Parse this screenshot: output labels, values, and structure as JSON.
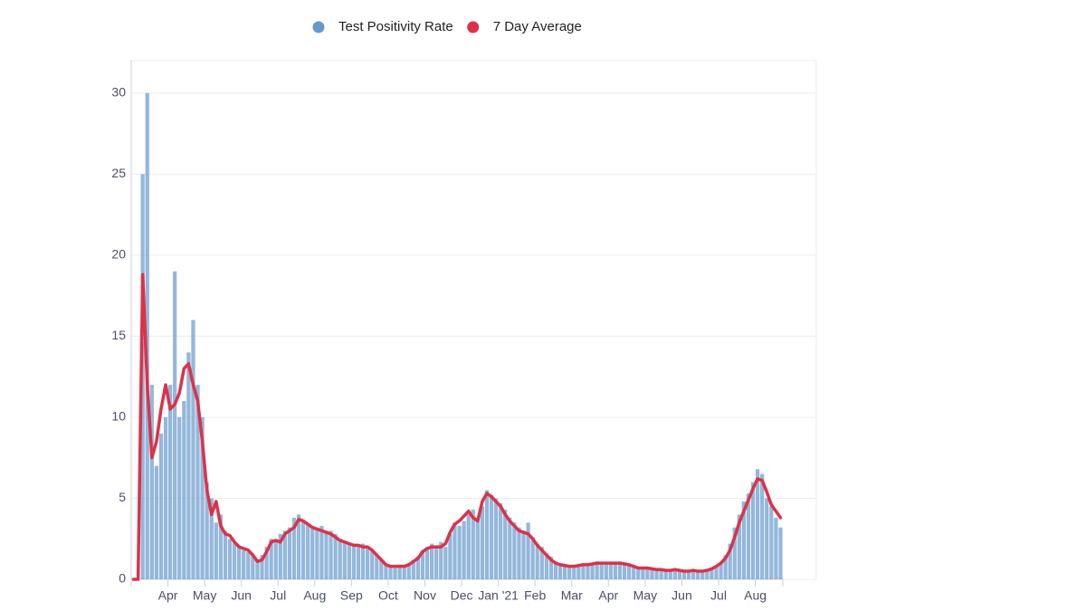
{
  "chart_data": {
    "type": "bar",
    "categories": [
      null,
      null,
      null,
      null,
      null,
      null,
      null,
      null,
      "Apr",
      null,
      null,
      null,
      null,
      null,
      null,
      null,
      "May",
      null,
      null,
      null,
      null,
      null,
      null,
      null,
      "Jun",
      null,
      null,
      null,
      null,
      null,
      null,
      null,
      "Jul",
      null,
      null,
      null,
      null,
      null,
      null,
      null,
      "Aug",
      null,
      null,
      null,
      null,
      null,
      null,
      null,
      "Sep",
      null,
      null,
      null,
      null,
      null,
      null,
      null,
      "Oct",
      null,
      null,
      null,
      null,
      null,
      null,
      null,
      "Nov",
      null,
      null,
      null,
      null,
      null,
      null,
      null,
      "Dec",
      null,
      null,
      null,
      null,
      null,
      null,
      null,
      "Jan '21",
      null,
      null,
      null,
      null,
      null,
      null,
      null,
      "Feb",
      null,
      null,
      null,
      null,
      null,
      null,
      null,
      "Mar",
      null,
      null,
      null,
      null,
      null,
      null,
      null,
      "Apr",
      null,
      null,
      null,
      null,
      null,
      null,
      null,
      "May",
      null,
      null,
      null,
      null,
      null,
      null,
      null,
      "Jun",
      null,
      null,
      null,
      null,
      null,
      null,
      null,
      "Jul",
      null,
      null,
      null,
      null,
      null,
      null,
      null,
      "Aug",
      null,
      null,
      null,
      null,
      null
    ],
    "series": [
      {
        "name": "Test Positivity Rate",
        "type": "bar",
        "color": "#6699cc",
        "values": [
          0,
          0,
          25,
          30,
          12,
          7,
          9,
          10,
          12,
          19,
          10,
          11,
          14,
          16,
          12,
          10,
          6,
          5,
          3.5,
          4,
          3,
          2.5,
          2.3,
          2,
          1.8,
          1.7,
          1.5,
          1.2,
          1.5,
          2,
          2.5,
          2.3,
          2.8,
          3,
          3.2,
          3.8,
          4,
          3.6,
          3.4,
          3.3,
          3.2,
          3.3,
          3,
          3,
          2.8,
          2.5,
          2.3,
          2.2,
          2.2,
          2.1,
          2.2,
          2,
          1.8,
          1.5,
          1.2,
          0.9,
          0.8,
          0.8,
          0.9,
          0.8,
          1,
          1.2,
          1.4,
          1.8,
          2,
          2.2,
          2.1,
          2.3,
          2,
          2.8,
          3.5,
          3.3,
          3.6,
          4,
          4.3,
          3.8,
          4.5,
          5.5,
          5.2,
          5,
          4.7,
          4.3,
          3.8,
          3.5,
          3.2,
          3,
          3.5,
          2.6,
          2.2,
          2,
          1.6,
          1.4,
          1.1,
          1,
          0.9,
          0.8,
          0.9,
          0.9,
          1,
          0.9,
          1,
          1.1,
          1,
          1,
          1,
          1,
          1.1,
          1,
          0.9,
          0.8,
          0.7,
          0.7,
          0.7,
          0.6,
          0.6,
          0.6,
          0.5,
          0.6,
          0.6,
          0.5,
          0.5,
          0.5,
          0.6,
          0.5,
          0.5,
          0.6,
          0.7,
          0.8,
          1,
          1.5,
          2.2,
          3.2,
          4,
          4.8,
          5.3,
          6,
          6.8,
          6.5,
          5,
          4.5,
          3.8,
          3.2
        ]
      },
      {
        "name": "7 Day Average",
        "type": "line",
        "color": "#dc3248",
        "values": [
          0,
          0,
          18.8,
          12,
          7.5,
          8.5,
          10.5,
          12,
          10.5,
          10.8,
          11.5,
          13,
          13.3,
          12,
          11,
          8.5,
          5.5,
          4,
          4.8,
          3.3,
          2.8,
          2.7,
          2.3,
          2,
          1.9,
          1.8,
          1.5,
          1.1,
          1.2,
          1.7,
          2.3,
          2.4,
          2.3,
          2.8,
          3,
          3.2,
          3.7,
          3.6,
          3.4,
          3.2,
          3.1,
          3,
          2.9,
          2.8,
          2.6,
          2.4,
          2.3,
          2.2,
          2.1,
          2.1,
          2,
          2,
          1.8,
          1.5,
          1.2,
          0.9,
          0.8,
          0.8,
          0.8,
          0.8,
          0.9,
          1.1,
          1.3,
          1.7,
          1.9,
          2,
          2,
          2,
          2.2,
          2.9,
          3.4,
          3.6,
          3.9,
          4.2,
          3.8,
          3.6,
          4.8,
          5.3,
          5.1,
          4.8,
          4.5,
          4,
          3.6,
          3.3,
          3,
          2.9,
          2.8,
          2.5,
          2.1,
          1.8,
          1.5,
          1.2,
          1,
          0.9,
          0.85,
          0.8,
          0.8,
          0.85,
          0.9,
          0.9,
          0.95,
          1,
          1,
          1,
          1,
          1,
          1,
          0.95,
          0.9,
          0.8,
          0.7,
          0.7,
          0.7,
          0.65,
          0.6,
          0.6,
          0.55,
          0.55,
          0.6,
          0.55,
          0.5,
          0.5,
          0.55,
          0.5,
          0.5,
          0.55,
          0.65,
          0.8,
          1,
          1.3,
          1.8,
          2.6,
          3.5,
          4.2,
          4.9,
          5.6,
          6.2,
          6.1,
          5.4,
          4.6,
          4.2,
          3.8
        ]
      }
    ],
    "ylim": [
      0,
      32
    ],
    "yticks": [
      0,
      5,
      10,
      15,
      20,
      25,
      30
    ],
    "grid": true,
    "legend": "top"
  }
}
